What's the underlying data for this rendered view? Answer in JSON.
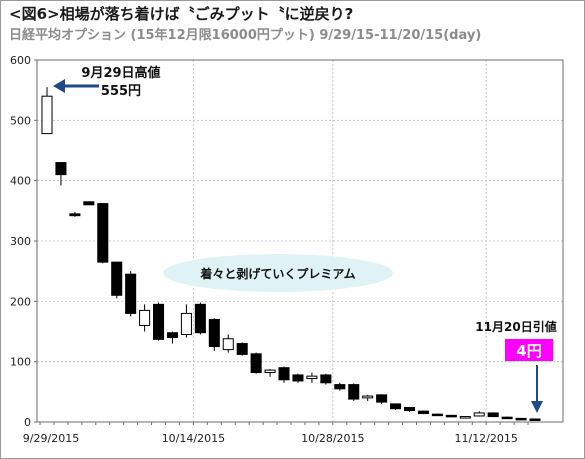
{
  "title": "<図6>相場が落ち着けば〝ごみプット〝に逆戻り?",
  "subtitle": "日経平均オプション (15年12月限16000円プット) 9/29/15-11/20/15(day)",
  "colors": {
    "bubble_fill": "#dff3f7",
    "arrow": "#1e4a8c",
    "highlight": "#ff00ff",
    "bear_candle": "#000000",
    "bull_candle": "#ffffff"
  },
  "annotations": {
    "high_label_line1": "9月29日高値",
    "high_label_line2": "555円",
    "bubble_text": "着々と剥げていくプレミアム",
    "last_label": "11月20日引値",
    "last_value": "4円"
  },
  "chart_data": {
    "type": "candlestick",
    "ylim": [
      0,
      600
    ],
    "yticks": [
      "0",
      "100",
      "200",
      "300",
      "400",
      "500",
      "600"
    ],
    "xtick_labels": [
      "9/29/2015",
      "10/14/2015",
      "10/28/2015",
      "11/12/2015"
    ],
    "xtick_indices": [
      0,
      11,
      21,
      32
    ],
    "candles": [
      {
        "o": 478,
        "h": 555,
        "l": 478,
        "c": 540
      },
      {
        "o": 430,
        "h": 430,
        "l": 392,
        "c": 410
      },
      {
        "o": 345,
        "h": 348,
        "l": 340,
        "c": 342
      },
      {
        "o": 365,
        "h": 365,
        "l": 360,
        "c": 360
      },
      {
        "o": 362,
        "h": 362,
        "l": 263,
        "c": 265
      },
      {
        "o": 265,
        "h": 265,
        "l": 205,
        "c": 210
      },
      {
        "o": 245,
        "h": 250,
        "l": 175,
        "c": 180
      },
      {
        "o": 160,
        "h": 195,
        "l": 150,
        "c": 185
      },
      {
        "o": 195,
        "h": 198,
        "l": 135,
        "c": 137
      },
      {
        "o": 148,
        "h": 150,
        "l": 130,
        "c": 140
      },
      {
        "o": 145,
        "h": 195,
        "l": 140,
        "c": 180
      },
      {
        "o": 195,
        "h": 198,
        "l": 145,
        "c": 148
      },
      {
        "o": 170,
        "h": 172,
        "l": 118,
        "c": 125
      },
      {
        "o": 120,
        "h": 145,
        "l": 115,
        "c": 138
      },
      {
        "o": 130,
        "h": 132,
        "l": 110,
        "c": 112
      },
      {
        "o": 113,
        "h": 115,
        "l": 80,
        "c": 82
      },
      {
        "o": 82,
        "h": 88,
        "l": 75,
        "c": 86
      },
      {
        "o": 90,
        "h": 92,
        "l": 65,
        "c": 70
      },
      {
        "o": 78,
        "h": 80,
        "l": 65,
        "c": 68
      },
      {
        "o": 72,
        "h": 82,
        "l": 65,
        "c": 76
      },
      {
        "o": 78,
        "h": 80,
        "l": 62,
        "c": 65
      },
      {
        "o": 62,
        "h": 65,
        "l": 52,
        "c": 55
      },
      {
        "o": 62,
        "h": 64,
        "l": 35,
        "c": 38
      },
      {
        "o": 40,
        "h": 45,
        "l": 35,
        "c": 43
      },
      {
        "o": 45,
        "h": 46,
        "l": 30,
        "c": 33
      },
      {
        "o": 30,
        "h": 31,
        "l": 20,
        "c": 22
      },
      {
        "o": 24,
        "h": 25,
        "l": 17,
        "c": 19
      },
      {
        "o": 18,
        "h": 19,
        "l": 13,
        "c": 14
      },
      {
        "o": 13,
        "h": 14,
        "l": 11,
        "c": 12
      },
      {
        "o": 11,
        "h": 12,
        "l": 9,
        "c": 10
      },
      {
        "o": 9,
        "h": 10,
        "l": 8,
        "c": 9
      },
      {
        "o": 10,
        "h": 18,
        "l": 9,
        "c": 15
      },
      {
        "o": 15,
        "h": 16,
        "l": 8,
        "c": 9
      },
      {
        "o": 8,
        "h": 9,
        "l": 5,
        "c": 6
      },
      {
        "o": 6,
        "h": 6,
        "l": 4,
        "c": 5
      },
      {
        "o": 5,
        "h": 5,
        "l": 4,
        "c": 4
      }
    ]
  }
}
